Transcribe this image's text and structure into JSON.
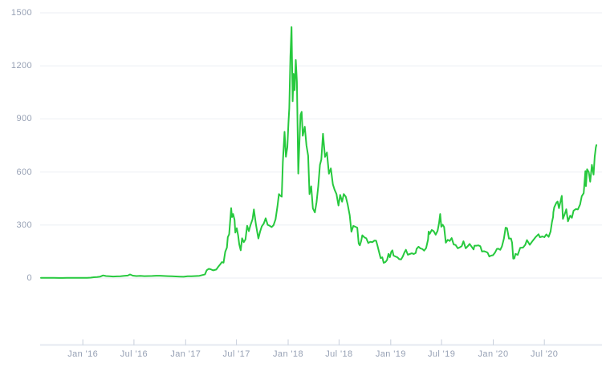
{
  "chart_data": {
    "type": "line",
    "title": "",
    "xlabel": "",
    "ylabel": "",
    "legend": "none",
    "grid": "horizontal",
    "colors": {
      "line": "#27c93e",
      "grid": "#f2f4f7",
      "axis": "#e4e9f0",
      "tick": "#c8cfdc",
      "label": "#96a0b4",
      "background": "#ffffff"
    },
    "y_axis": {
      "min": 0,
      "max": 1500,
      "ticks": [
        {
          "value": 0,
          "label": "0"
        },
        {
          "value": 300,
          "label": "300"
        },
        {
          "value": 600,
          "label": "600"
        },
        {
          "value": 900,
          "label": "900"
        },
        {
          "value": 1200,
          "label": "1200"
        },
        {
          "value": 1500,
          "label": "1500"
        }
      ]
    },
    "x_axis": {
      "ticks": [
        {
          "date": "2016-01-01",
          "label": "Jan '16"
        },
        {
          "date": "2016-07-01",
          "label": "Jul '16"
        },
        {
          "date": "2017-01-01",
          "label": "Jan '17"
        },
        {
          "date": "2017-07-01",
          "label": "Jul '17"
        },
        {
          "date": "2018-01-01",
          "label": "Jan '18"
        },
        {
          "date": "2018-07-01",
          "label": "Jul '18"
        },
        {
          "date": "2019-01-01",
          "label": "Jan '19"
        },
        {
          "date": "2019-07-01",
          "label": "Jul '19"
        },
        {
          "date": "2020-01-01",
          "label": "Jan '20"
        },
        {
          "date": "2020-07-01",
          "label": "Jul '20"
        }
      ]
    },
    "points": [
      [
        "2015-08-05",
        1.2
      ],
      [
        "2015-08-20",
        1.4
      ],
      [
        "2015-09-05",
        1.3
      ],
      [
        "2015-09-21",
        0.9
      ],
      [
        "2015-10-08",
        0.6
      ],
      [
        "2015-10-21",
        0.5
      ],
      [
        "2015-11-05",
        0.9
      ],
      [
        "2015-11-19",
        1.0
      ],
      [
        "2015-12-03",
        0.9
      ],
      [
        "2015-12-17",
        0.95
      ],
      [
        "2016-01-01",
        0.95
      ],
      [
        "2016-01-16",
        1.2
      ],
      [
        "2016-01-29",
        2.4
      ],
      [
        "2016-02-09",
        4.5
      ],
      [
        "2016-02-21",
        5.6
      ],
      [
        "2016-03-03",
        8.2
      ],
      [
        "2016-03-13",
        14.8
      ],
      [
        "2016-03-24",
        11.2
      ],
      [
        "2016-04-05",
        10.4
      ],
      [
        "2016-04-18",
        8.8
      ],
      [
        "2016-05-01",
        9.3
      ],
      [
        "2016-05-14",
        10.0
      ],
      [
        "2016-05-27",
        12.3
      ],
      [
        "2016-06-09",
        14.1
      ],
      [
        "2016-06-17",
        20.6
      ],
      [
        "2016-06-27",
        13.8
      ],
      [
        "2016-07-10",
        11.2
      ],
      [
        "2016-07-24",
        12.3
      ],
      [
        "2016-08-07",
        10.9
      ],
      [
        "2016-08-21",
        11.2
      ],
      [
        "2016-09-04",
        11.6
      ],
      [
        "2016-09-18",
        13.0
      ],
      [
        "2016-10-02",
        13.2
      ],
      [
        "2016-10-16",
        11.9
      ],
      [
        "2016-10-30",
        10.9
      ],
      [
        "2016-11-13",
        9.8
      ],
      [
        "2016-11-27",
        9.1
      ],
      [
        "2016-12-11",
        8.2
      ],
      [
        "2016-12-25",
        7.2
      ],
      [
        "2017-01-08",
        10.3
      ],
      [
        "2017-01-22",
        10.6
      ],
      [
        "2017-02-05",
        11.2
      ],
      [
        "2017-02-19",
        12.8
      ],
      [
        "2017-03-01",
        16.8
      ],
      [
        "2017-03-11",
        21.0
      ],
      [
        "2017-03-17",
        44.0
      ],
      [
        "2017-03-24",
        52.0
      ],
      [
        "2017-03-31",
        49.8
      ],
      [
        "2017-04-09",
        43.7
      ],
      [
        "2017-04-20",
        48.0
      ],
      [
        "2017-04-27",
        64.0
      ],
      [
        "2017-05-04",
        77.0
      ],
      [
        "2017-05-10",
        90.0
      ],
      [
        "2017-05-16",
        87.0
      ],
      [
        "2017-05-22",
        148.0
      ],
      [
        "2017-05-28",
        172.0
      ],
      [
        "2017-05-31",
        231.0
      ],
      [
        "2017-06-05",
        248.0
      ],
      [
        "2017-06-12",
        395.0
      ],
      [
        "2017-06-15",
        345.0
      ],
      [
        "2017-06-19",
        362.0
      ],
      [
        "2017-06-24",
        330.0
      ],
      [
        "2017-06-27",
        257.0
      ],
      [
        "2017-07-02",
        282.0
      ],
      [
        "2017-07-07",
        240.0
      ],
      [
        "2017-07-11",
        190.0
      ],
      [
        "2017-07-16",
        157.0
      ],
      [
        "2017-07-21",
        225.0
      ],
      [
        "2017-07-27",
        203.0
      ],
      [
        "2017-08-02",
        218.0
      ],
      [
        "2017-08-08",
        296.0
      ],
      [
        "2017-08-14",
        265.0
      ],
      [
        "2017-08-20",
        300.0
      ],
      [
        "2017-08-27",
        332.0
      ],
      [
        "2017-09-01",
        388.0
      ],
      [
        "2017-09-08",
        305.0
      ],
      [
        "2017-09-14",
        249.0
      ],
      [
        "2017-09-17",
        224.0
      ],
      [
        "2017-09-23",
        262.0
      ],
      [
        "2017-09-29",
        292.0
      ],
      [
        "2017-10-06",
        308.0
      ],
      [
        "2017-10-13",
        338.0
      ],
      [
        "2017-10-20",
        301.0
      ],
      [
        "2017-10-27",
        296.0
      ],
      [
        "2017-11-03",
        288.0
      ],
      [
        "2017-11-10",
        299.0
      ],
      [
        "2017-11-17",
        332.0
      ],
      [
        "2017-11-24",
        407.0
      ],
      [
        "2017-11-29",
        475.0
      ],
      [
        "2017-12-04",
        466.0
      ],
      [
        "2017-12-09",
        460.0
      ],
      [
        "2017-12-13",
        657.0
      ],
      [
        "2017-12-19",
        827.0
      ],
      [
        "2017-12-24",
        686.0
      ],
      [
        "2017-12-29",
        740.0
      ],
      [
        "2018-01-02",
        880.0
      ],
      [
        "2018-01-05",
        961.0
      ],
      [
        "2018-01-09",
        1252.0
      ],
      [
        "2018-01-13",
        1420.0
      ],
      [
        "2018-01-17",
        1000.0
      ],
      [
        "2018-01-20",
        1155.0
      ],
      [
        "2018-01-24",
        1062.0
      ],
      [
        "2018-01-28",
        1233.0
      ],
      [
        "2018-02-01",
        1110.0
      ],
      [
        "2018-02-06",
        591.0
      ],
      [
        "2018-02-11",
        810.0
      ],
      [
        "2018-02-14",
        922.0
      ],
      [
        "2018-02-18",
        940.0
      ],
      [
        "2018-02-22",
        805.0
      ],
      [
        "2018-03-01",
        856.0
      ],
      [
        "2018-03-07",
        750.0
      ],
      [
        "2018-03-13",
        692.0
      ],
      [
        "2018-03-18",
        475.0
      ],
      [
        "2018-03-24",
        519.0
      ],
      [
        "2018-03-30",
        394.0
      ],
      [
        "2018-04-06",
        371.0
      ],
      [
        "2018-04-12",
        430.0
      ],
      [
        "2018-04-18",
        520.0
      ],
      [
        "2018-04-24",
        640.0
      ],
      [
        "2018-04-29",
        670.0
      ],
      [
        "2018-05-05",
        816.0
      ],
      [
        "2018-05-12",
        685.0
      ],
      [
        "2018-05-19",
        710.0
      ],
      [
        "2018-05-26",
        590.0
      ],
      [
        "2018-06-02",
        620.0
      ],
      [
        "2018-06-09",
        530.0
      ],
      [
        "2018-06-15",
        500.0
      ],
      [
        "2018-06-22",
        475.0
      ],
      [
        "2018-06-29",
        410.0
      ],
      [
        "2018-07-05",
        470.0
      ],
      [
        "2018-07-12",
        432.0
      ],
      [
        "2018-07-18",
        475.0
      ],
      [
        "2018-07-25",
        460.0
      ],
      [
        "2018-08-01",
        415.0
      ],
      [
        "2018-08-08",
        355.0
      ],
      [
        "2018-08-14",
        262.0
      ],
      [
        "2018-08-21",
        295.0
      ],
      [
        "2018-08-28",
        290.0
      ],
      [
        "2018-09-04",
        285.0
      ],
      [
        "2018-09-09",
        195.0
      ],
      [
        "2018-09-13",
        185.0
      ],
      [
        "2018-09-18",
        210.0
      ],
      [
        "2018-09-22",
        242.0
      ],
      [
        "2018-09-29",
        230.0
      ],
      [
        "2018-10-06",
        225.0
      ],
      [
        "2018-10-13",
        198.0
      ],
      [
        "2018-10-20",
        205.0
      ],
      [
        "2018-10-28",
        203.0
      ],
      [
        "2018-11-04",
        212.0
      ],
      [
        "2018-11-10",
        211.0
      ],
      [
        "2018-11-15",
        183.0
      ],
      [
        "2018-11-20",
        150.0
      ],
      [
        "2018-11-26",
        113.0
      ],
      [
        "2018-12-02",
        117.0
      ],
      [
        "2018-12-07",
        86.0
      ],
      [
        "2018-12-13",
        90.0
      ],
      [
        "2018-12-19",
        102.0
      ],
      [
        "2018-12-24",
        137.0
      ],
      [
        "2018-12-29",
        118.0
      ],
      [
        "2019-01-03",
        149.0
      ],
      [
        "2019-01-07",
        157.0
      ],
      [
        "2019-01-11",
        127.0
      ],
      [
        "2019-01-18",
        122.0
      ],
      [
        "2019-01-25",
        117.0
      ],
      [
        "2019-01-31",
        107.0
      ],
      [
        "2019-02-07",
        105.0
      ],
      [
        "2019-02-13",
        122.0
      ],
      [
        "2019-02-19",
        145.0
      ],
      [
        "2019-02-24",
        160.0
      ],
      [
        "2019-03-03",
        132.0
      ],
      [
        "2019-03-10",
        136.0
      ],
      [
        "2019-03-17",
        140.0
      ],
      [
        "2019-03-24",
        136.0
      ],
      [
        "2019-03-31",
        142.0
      ],
      [
        "2019-04-03",
        165.0
      ],
      [
        "2019-04-10",
        177.0
      ],
      [
        "2019-04-17",
        167.0
      ],
      [
        "2019-04-24",
        164.0
      ],
      [
        "2019-04-30",
        155.0
      ],
      [
        "2019-05-07",
        170.0
      ],
      [
        "2019-05-14",
        218.0
      ],
      [
        "2019-05-16",
        263.0
      ],
      [
        "2019-05-20",
        250.0
      ],
      [
        "2019-05-27",
        272.0
      ],
      [
        "2019-06-03",
        265.0
      ],
      [
        "2019-06-10",
        245.0
      ],
      [
        "2019-06-17",
        268.0
      ],
      [
        "2019-06-22",
        312.0
      ],
      [
        "2019-06-26",
        362.0
      ],
      [
        "2019-06-30",
        290.0
      ],
      [
        "2019-07-05",
        302.0
      ],
      [
        "2019-07-10",
        288.0
      ],
      [
        "2019-07-16",
        200.0
      ],
      [
        "2019-07-23",
        216.0
      ],
      [
        "2019-07-30",
        210.0
      ],
      [
        "2019-08-06",
        226.0
      ],
      [
        "2019-08-13",
        190.0
      ],
      [
        "2019-08-20",
        187.0
      ],
      [
        "2019-08-28",
        168.0
      ],
      [
        "2019-09-04",
        174.0
      ],
      [
        "2019-09-11",
        181.0
      ],
      [
        "2019-09-17",
        208.0
      ],
      [
        "2019-09-25",
        168.0
      ],
      [
        "2019-10-02",
        180.0
      ],
      [
        "2019-10-09",
        193.0
      ],
      [
        "2019-10-16",
        177.0
      ],
      [
        "2019-10-23",
        162.0
      ],
      [
        "2019-10-26",
        183.0
      ],
      [
        "2019-11-02",
        183.0
      ],
      [
        "2019-11-09",
        185.0
      ],
      [
        "2019-11-16",
        180.0
      ],
      [
        "2019-11-22",
        150.0
      ],
      [
        "2019-11-29",
        152.0
      ],
      [
        "2019-12-06",
        148.0
      ],
      [
        "2019-12-12",
        143.0
      ],
      [
        "2019-12-18",
        122.0
      ],
      [
        "2019-12-24",
        127.0
      ],
      [
        "2019-12-31",
        129.0
      ],
      [
        "2020-01-07",
        143.0
      ],
      [
        "2020-01-14",
        165.0
      ],
      [
        "2020-01-19",
        166.0
      ],
      [
        "2020-01-26",
        160.0
      ],
      [
        "2020-02-01",
        180.0
      ],
      [
        "2020-02-08",
        223.0
      ],
      [
        "2020-02-14",
        285.0
      ],
      [
        "2020-02-19",
        282.0
      ],
      [
        "2020-02-26",
        223.0
      ],
      [
        "2020-03-04",
        224.0
      ],
      [
        "2020-03-08",
        200.0
      ],
      [
        "2020-03-12",
        110.0
      ],
      [
        "2020-03-16",
        111.0
      ],
      [
        "2020-03-20",
        137.0
      ],
      [
        "2020-03-28",
        131.0
      ],
      [
        "2020-04-06",
        171.0
      ],
      [
        "2020-04-16",
        172.0
      ],
      [
        "2020-04-24",
        188.0
      ],
      [
        "2020-04-30",
        215.0
      ],
      [
        "2020-05-10",
        188.0
      ],
      [
        "2020-05-20",
        210.0
      ],
      [
        "2020-05-31",
        232.0
      ],
      [
        "2020-06-10",
        248.0
      ],
      [
        "2020-06-15",
        231.0
      ],
      [
        "2020-06-24",
        235.0
      ],
      [
        "2020-07-01",
        231.0
      ],
      [
        "2020-07-08",
        247.0
      ],
      [
        "2020-07-16",
        233.0
      ],
      [
        "2020-07-23",
        263.0
      ],
      [
        "2020-07-28",
        317.0
      ],
      [
        "2020-08-01",
        346.0
      ],
      [
        "2020-08-02",
        372.0
      ],
      [
        "2020-08-05",
        400.0
      ],
      [
        "2020-08-13",
        427.0
      ],
      [
        "2020-08-17",
        433.0
      ],
      [
        "2020-08-22",
        395.0
      ],
      [
        "2020-09-01",
        465.0
      ],
      [
        "2020-09-05",
        335.0
      ],
      [
        "2020-09-12",
        365.0
      ],
      [
        "2020-09-17",
        389.0
      ],
      [
        "2020-09-23",
        321.0
      ],
      [
        "2020-10-01",
        353.0
      ],
      [
        "2020-10-07",
        341.0
      ],
      [
        "2020-10-13",
        381.0
      ],
      [
        "2020-10-21",
        390.0
      ],
      [
        "2020-10-28",
        388.0
      ],
      [
        "2020-11-05",
        416.0
      ],
      [
        "2020-11-11",
        463.0
      ],
      [
        "2020-11-18",
        480.0
      ],
      [
        "2020-11-24",
        605.0
      ],
      [
        "2020-11-26",
        520.0
      ],
      [
        "2020-11-30",
        615.0
      ],
      [
        "2020-12-06",
        600.0
      ],
      [
        "2020-12-11",
        545.0
      ],
      [
        "2020-12-17",
        640.0
      ],
      [
        "2020-12-23",
        585.0
      ],
      [
        "2020-12-27",
        685.0
      ],
      [
        "2020-12-31",
        738.0
      ],
      [
        "2021-01-02",
        752.0
      ]
    ]
  }
}
